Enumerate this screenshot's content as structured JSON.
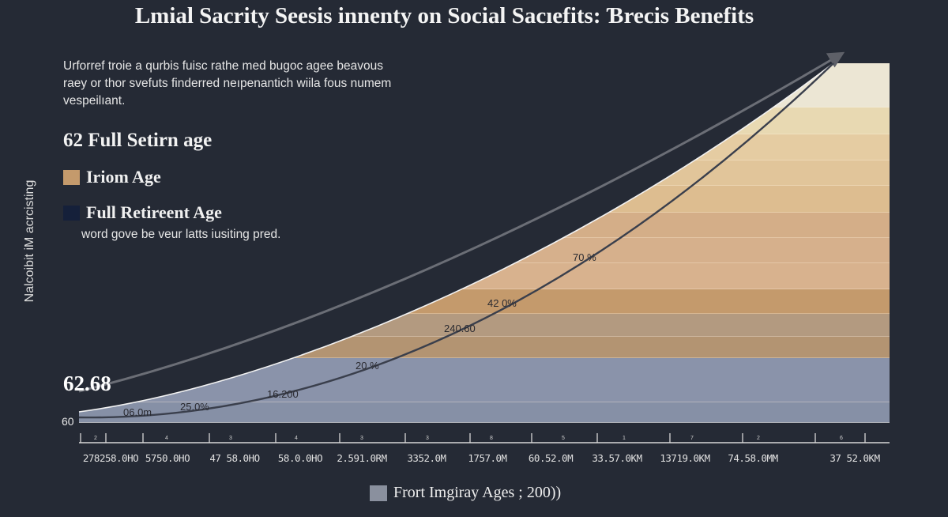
{
  "colors": {
    "background": "#252a35",
    "legend_income_age": "#c49a6c",
    "legend_full_retirement_age": "#15203a",
    "bottom_legend": "#8a909e",
    "upper_arrow": "#6b6e76",
    "lower_arrow": "#3a3f4c",
    "band_colors": [
      "#ece6d4",
      "#e8d9b2",
      "#e5cca2",
      "#e1c59a",
      "#ddbd90",
      "#d4ae88",
      "#d6b08c",
      "#d8b28e",
      "#c49a6c",
      "#b39a80",
      "#b39472",
      "#8a93aa",
      "#8690a6",
      "#5e7690"
    ]
  },
  "header": {
    "title": "Lmial Sacrity Seesis innenty on Social Sacıefits: Ɓrecis Benefits",
    "description": "Urforref troie a qurbis fuisc rathe med bugoc agee beavous raey or thor svefuts finderred neıpenantich wiila fous numem vespeilıant."
  },
  "side_legend": {
    "heading": "62 Full Setirn age",
    "items": [
      {
        "label": "Iriom Age",
        "color_key": "legend_income_age"
      },
      {
        "label": "Full Retireent Age",
        "color_key": "legend_full_retirement_age"
      }
    ],
    "note": "word gove be veur latts iusiting pred."
  },
  "chart_data": {
    "type": "area",
    "title": "Lmial Sacrity Seesis innenty on Social Sacıefits: Ɓrecis Benefits",
    "ylabel": "Nalcoibit iM acrcisting",
    "xlabel": "",
    "y_tick_labels": [
      "60",
      "62.68"
    ],
    "x_tick_labels": [
      "278258.0HO",
      "5750.0HO",
      "47 58.0HO",
      "58.0.0HO",
      "2.591.0RM",
      "3352.0M",
      "1757.0M",
      "60.52.0M",
      "33.57.0KM",
      "13719.0KM",
      "74.58.0MM",
      "37 52.0KM"
    ],
    "x_minor_labels": [
      "2",
      "4",
      "3",
      "4",
      "3",
      "3",
      "8",
      "5",
      "1",
      "7",
      "2",
      "6"
    ],
    "data_labels": [
      "06.0m",
      "25.0%",
      "16.200",
      "20 %",
      "240.60",
      "42 0%",
      "70 %"
    ],
    "series": [
      {
        "values_shape": "exponential rise",
        "fill": "banded gradient"
      }
    ],
    "legend": {
      "label": "Frort Imgiray Ages ; 200))",
      "placement": "bottom"
    },
    "grid": false
  }
}
